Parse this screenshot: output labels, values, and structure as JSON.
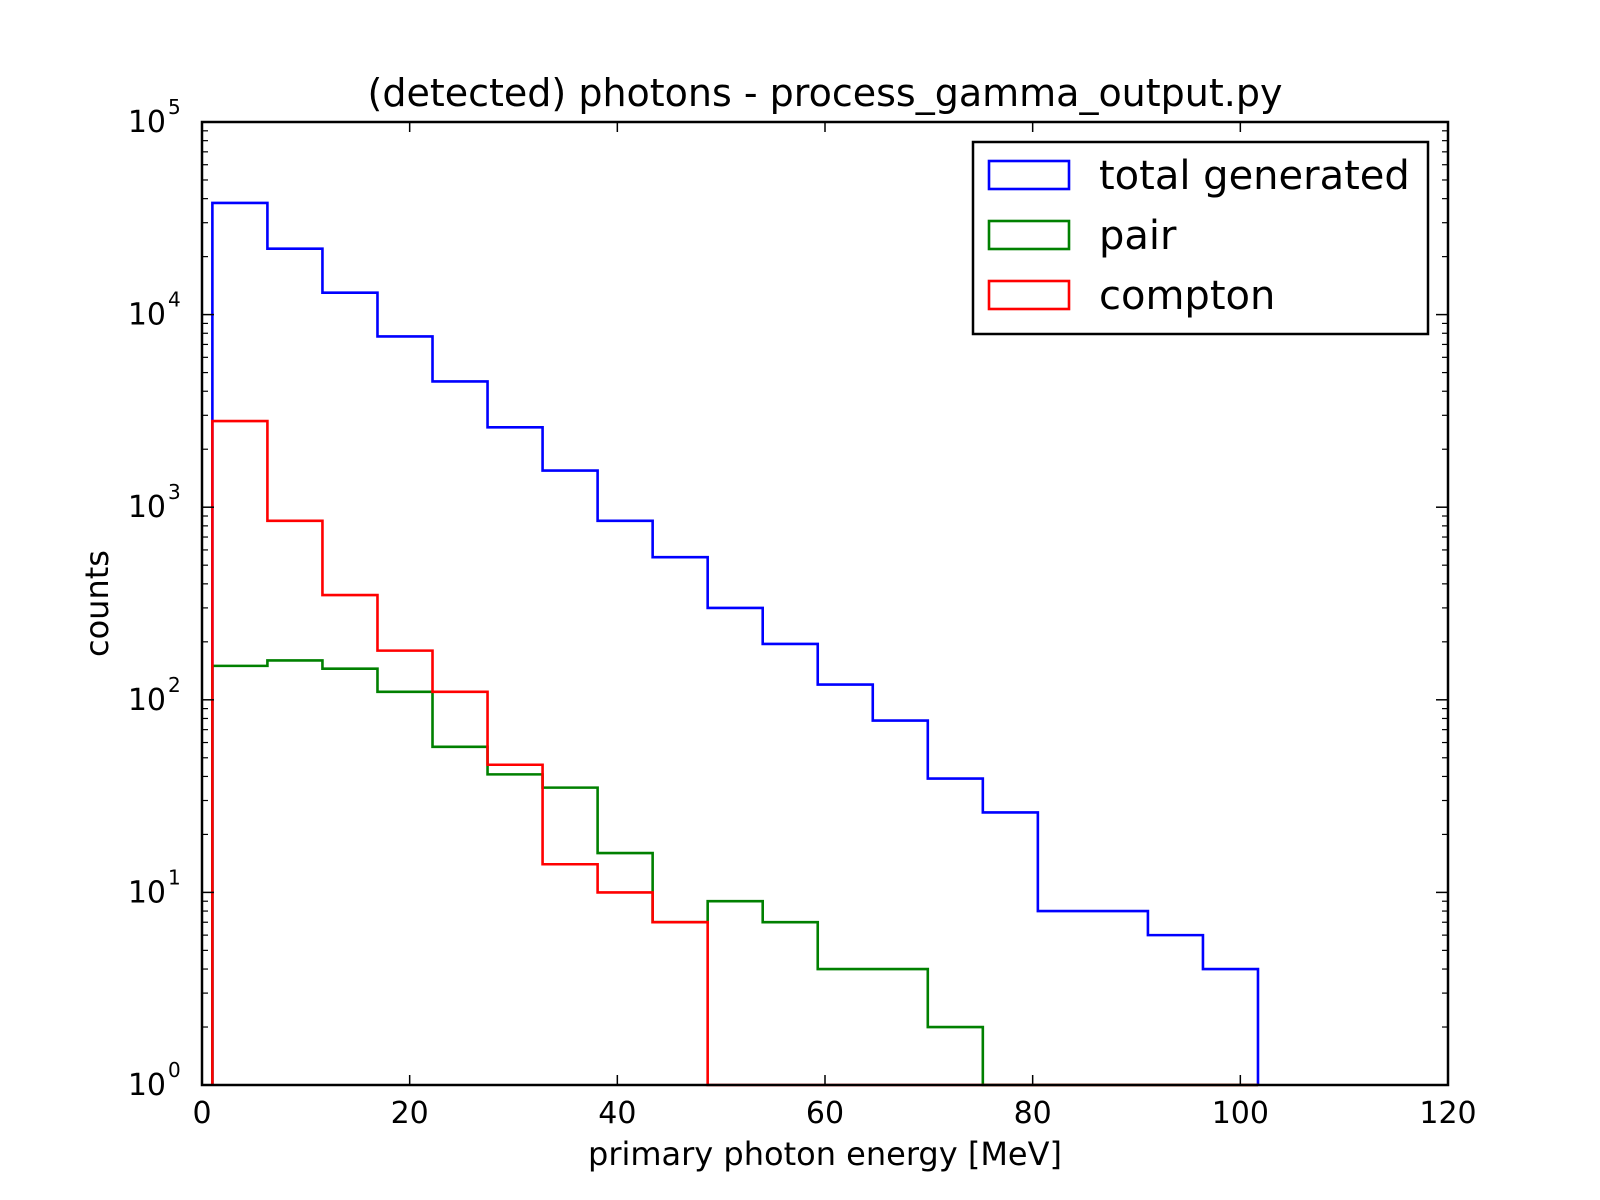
{
  "chart_data": {
    "type": "histogram-step",
    "title": "(detected) photons - process_gamma_output.py",
    "xlabel": "primary photon energy [MeV]",
    "ylabel": "counts",
    "xlim": [
      0,
      120
    ],
    "ylim": [
      1,
      100000
    ],
    "yscale": "log",
    "x_ticks": [
      "0",
      "20",
      "40",
      "60",
      "80",
      "100",
      "120"
    ],
    "y_ticks": [
      {
        "base": "10",
        "exp": "0"
      },
      {
        "base": "10",
        "exp": "1"
      },
      {
        "base": "10",
        "exp": "2"
      },
      {
        "base": "10",
        "exp": "3"
      },
      {
        "base": "10",
        "exp": "4"
      },
      {
        "base": "10",
        "exp": "5"
      }
    ],
    "grid": false,
    "legend_position": "top-right",
    "bin_edges": [
      1.0,
      6.3,
      11.6,
      16.9,
      22.2,
      27.5,
      32.8,
      38.1,
      43.4,
      48.7,
      54.0,
      59.3,
      64.6,
      69.9,
      75.2,
      80.5,
      85.8,
      91.1,
      96.4,
      101.7
    ],
    "series": [
      {
        "name": "total generated",
        "color": "#0000ff",
        "values": [
          38000,
          22000,
          13000,
          7700,
          4500,
          2600,
          1550,
          850,
          550,
          300,
          195,
          120,
          78,
          39,
          26,
          8,
          8,
          6,
          4
        ]
      },
      {
        "name": "pair",
        "color": "#008000",
        "values": [
          150,
          160,
          145,
          110,
          57,
          41,
          35,
          16,
          7,
          9,
          7,
          4,
          4,
          2,
          1,
          1,
          1,
          1,
          1
        ]
      },
      {
        "name": "compton",
        "color": "#ff0000",
        "values": [
          2800,
          850,
          350,
          180,
          110,
          46,
          14,
          10,
          7,
          1,
          1,
          1,
          1,
          1,
          1,
          1,
          1,
          1,
          1
        ]
      }
    ]
  }
}
